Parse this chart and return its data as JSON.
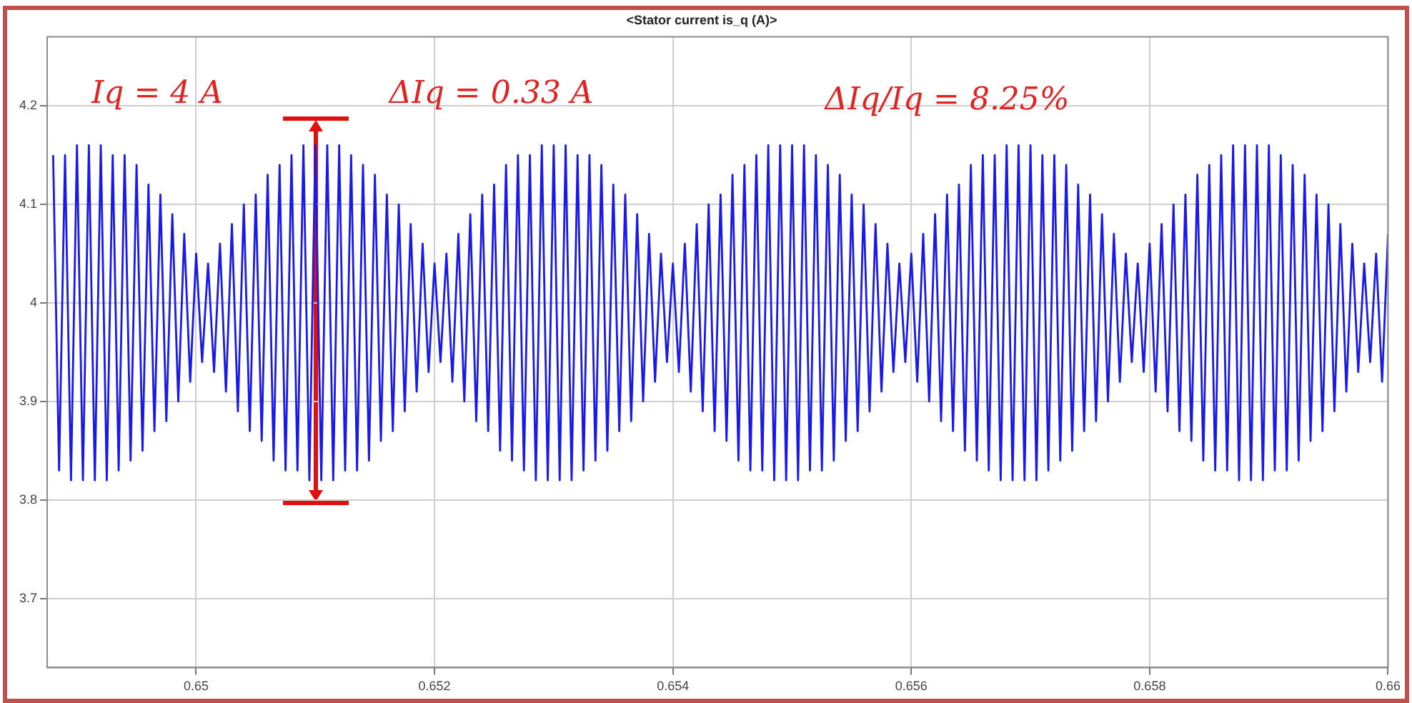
{
  "chart_data": {
    "type": "line",
    "title": "<Stator current is_q (A)>",
    "color": "#1a1ae6",
    "xlim": [
      0.64875,
      0.66
    ],
    "xticks": [
      0.65,
      0.652,
      0.654,
      0.656,
      0.658,
      0.66
    ],
    "ylim": [
      3.63,
      4.27
    ],
    "yticks": [
      3.7,
      3.8,
      3.9,
      4,
      4.1,
      4.2
    ],
    "grid": true,
    "annotations": [
      "Iq = 4 A",
      "ΔIq = 0.33 A",
      "ΔIq/Iq = 8.25%"
    ],
    "x": [
      0.6488,
      0.64885,
      0.6489,
      0.64895,
      0.649,
      0.64905,
      0.6491,
      0.64915,
      0.6492,
      0.64925,
      0.6493,
      0.64935,
      0.6494,
      0.64945,
      0.6495,
      0.64955,
      0.6496,
      0.64965,
      0.6497,
      0.64975,
      0.6498,
      0.64985,
      0.6499,
      0.64995,
      0.65,
      0.65005,
      0.6501,
      0.65015,
      0.6502,
      0.65025,
      0.6503,
      0.65035,
      0.6504,
      0.65045,
      0.6505,
      0.65055,
      0.6506,
      0.65065,
      0.6507,
      0.65075,
      0.6508,
      0.65085,
      0.6509,
      0.65095,
      0.651,
      0.65105,
      0.6511,
      0.65115,
      0.6512,
      0.65125,
      0.6513,
      0.65135,
      0.6514,
      0.65145,
      0.6515,
      0.65155,
      0.6516,
      0.65165,
      0.6517,
      0.65175,
      0.6518,
      0.65185,
      0.6519,
      0.65195,
      0.652,
      0.65205,
      0.6521,
      0.65215,
      0.6522,
      0.65225,
      0.6523,
      0.65235,
      0.6524,
      0.65245,
      0.6525,
      0.65255,
      0.6526,
      0.65265,
      0.6527,
      0.65275,
      0.6528,
      0.65285,
      0.6529,
      0.65295,
      0.653,
      0.65305,
      0.6531,
      0.65315,
      0.6532,
      0.65325,
      0.6533,
      0.65335,
      0.6534,
      0.65345,
      0.6535,
      0.65355,
      0.6536,
      0.65365,
      0.6537,
      0.65375,
      0.6538,
      0.65385,
      0.6539,
      0.65395,
      0.654,
      0.65405,
      0.6541,
      0.65415,
      0.6542,
      0.65425,
      0.6543,
      0.65435,
      0.6544,
      0.65445,
      0.6545,
      0.65455,
      0.6546,
      0.65465,
      0.6547,
      0.65475,
      0.6548,
      0.65485,
      0.6549,
      0.65495,
      0.655,
      0.65505,
      0.6551,
      0.65515,
      0.6552,
      0.65525,
      0.6553,
      0.65535,
      0.6554,
      0.65545,
      0.6555,
      0.65555,
      0.6556,
      0.65565,
      0.6557,
      0.65575,
      0.6558,
      0.65585,
      0.6559,
      0.65595,
      0.656,
      0.65605,
      0.6561,
      0.65615,
      0.6562,
      0.65625,
      0.6563,
      0.65635,
      0.6564,
      0.65645,
      0.6565,
      0.65655,
      0.6566,
      0.65665,
      0.6567,
      0.65675,
      0.6568,
      0.65685,
      0.6569,
      0.65695,
      0.657,
      0.65705,
      0.6571,
      0.65715,
      0.6572,
      0.65725,
      0.6573,
      0.65735,
      0.6574,
      0.65745,
      0.6575,
      0.65755,
      0.6576,
      0.65765,
      0.6577,
      0.65775,
      0.6578,
      0.65785,
      0.6579,
      0.65795,
      0.658,
      0.65805,
      0.6581,
      0.65815,
      0.6582,
      0.65825,
      0.6583,
      0.65835,
      0.6584,
      0.65845,
      0.6585,
      0.65855,
      0.6586,
      0.65865,
      0.6587,
      0.65875,
      0.6588,
      0.65885,
      0.6589,
      0.65895,
      0.659,
      0.65905,
      0.6591,
      0.65915,
      0.6592,
      0.65925,
      0.6593,
      0.65935,
      0.6594,
      0.65945,
      0.6595,
      0.65955,
      0.6596,
      0.65965,
      0.6597,
      0.65975,
      0.6598,
      0.65985,
      0.6599,
      0.65995,
      0.66
    ],
    "values": [
      4.15,
      3.83,
      4.15,
      3.82,
      4.16,
      3.82,
      4.16,
      3.82,
      4.16,
      3.82,
      4.15,
      3.83,
      4.15,
      3.84,
      4.14,
      3.85,
      4.12,
      3.87,
      4.11,
      3.88,
      4.09,
      3.9,
      4.07,
      3.92,
      4.05,
      3.94,
      4.04,
      3.93,
      4.06,
      3.91,
      4.08,
      3.89,
      4.1,
      3.87,
      4.11,
      3.86,
      4.13,
      3.84,
      4.14,
      3.83,
      4.15,
      3.83,
      4.16,
      3.82,
      4.16,
      3.82,
      4.16,
      3.82,
      4.16,
      3.83,
      4.15,
      3.83,
      4.14,
      3.84,
      4.13,
      3.86,
      4.11,
      3.87,
      4.1,
      3.89,
      4.08,
      3.91,
      4.06,
      3.93,
      4.04,
      3.94,
      4.05,
      3.92,
      4.07,
      3.9,
      4.09,
      3.88,
      4.11,
      3.87,
      4.12,
      3.85,
      4.14,
      3.84,
      4.15,
      3.83,
      4.15,
      3.82,
      4.16,
      3.82,
      4.16,
      3.82,
      4.16,
      3.82,
      4.15,
      3.83,
      4.15,
      3.84,
      4.14,
      3.85,
      4.12,
      3.87,
      4.11,
      3.88,
      4.09,
      3.9,
      4.07,
      3.92,
      4.05,
      3.94,
      4.04,
      3.93,
      4.06,
      3.91,
      4.08,
      3.89,
      4.1,
      3.87,
      4.11,
      3.86,
      4.13,
      3.84,
      4.14,
      3.83,
      4.15,
      3.83,
      4.16,
      3.82,
      4.16,
      3.82,
      4.16,
      3.82,
      4.16,
      3.83,
      4.15,
      3.83,
      4.14,
      3.84,
      4.13,
      3.86,
      4.11,
      3.87,
      4.1,
      3.89,
      4.08,
      3.91,
      4.06,
      3.93,
      4.04,
      3.94,
      4.05,
      3.92,
      4.07,
      3.9,
      4.09,
      3.88,
      4.11,
      3.87,
      4.12,
      3.85,
      4.14,
      3.84,
      4.15,
      3.83,
      4.15,
      3.82,
      4.16,
      3.82,
      4.16,
      3.82,
      4.16,
      3.82,
      4.15,
      3.83,
      4.15,
      3.84,
      4.14,
      3.85,
      4.12,
      3.87,
      4.11,
      3.88,
      4.09,
      3.9,
      4.07,
      3.92,
      4.05,
      3.94,
      4.04,
      3.93,
      4.06,
      3.91,
      4.08,
      3.89,
      4.1,
      3.87,
      4.11,
      3.86,
      4.13,
      3.84,
      4.14,
      3.83,
      4.15,
      3.83,
      4.16,
      3.82,
      4.16,
      3.82,
      4.16,
      3.82,
      4.16,
      3.83,
      4.15,
      3.83,
      4.14,
      3.84,
      4.13,
      3.86,
      4.11,
      3.87,
      4.1,
      3.89,
      4.08,
      3.91,
      4.06,
      3.93,
      4.04,
      3.94,
      4.05,
      3.92,
      4.07
    ]
  }
}
